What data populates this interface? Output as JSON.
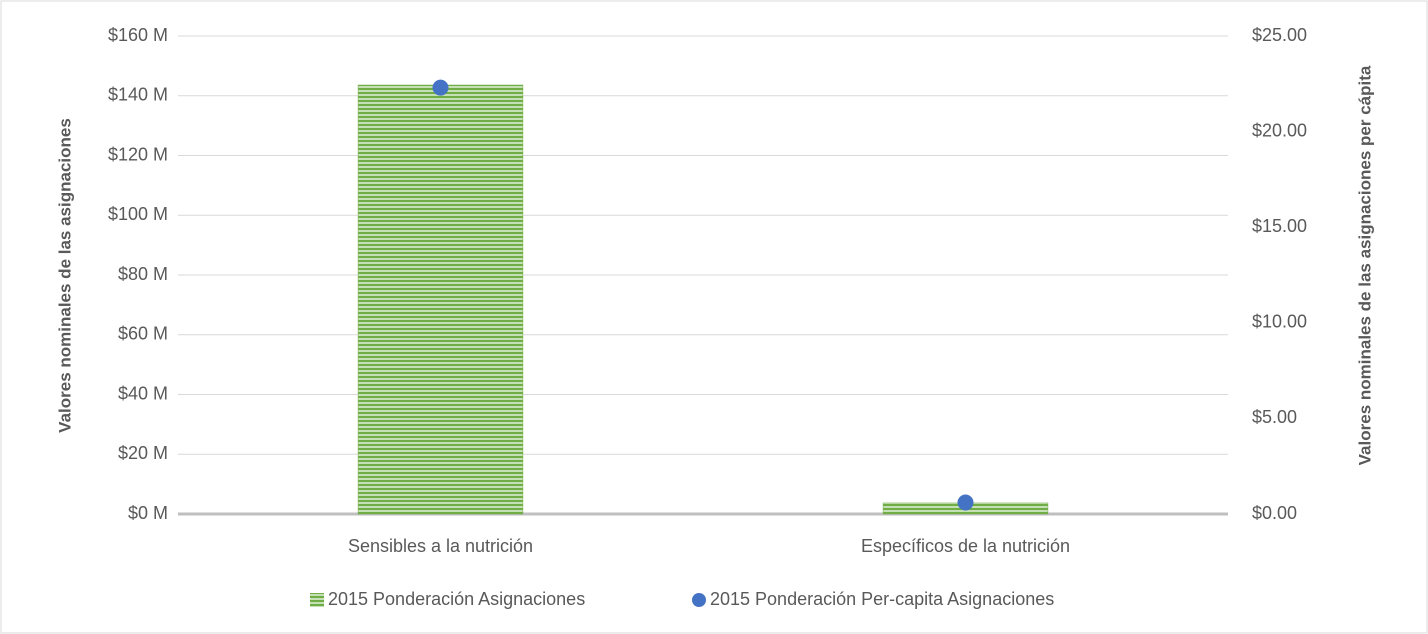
{
  "chart_data": {
    "type": "bar",
    "categories": [
      "Sensibles a la nutrición",
      "Específicos de la nutrición"
    ],
    "y_label": "Valores nominales de las asignaciones",
    "y2_label": "Valores  nominales de las asignaciones per cápita",
    "series": [
      {
        "name": "2015 Ponderación Asignaciones",
        "type": "bar",
        "color": "#70ad47",
        "values": [
          143.6,
          3.7
        ]
      },
      {
        "name": "2015 Ponderación Per-capita Asignaciones",
        "type": "scatter",
        "axis": "y2",
        "color": "#4472c4",
        "values": [
          22.3,
          0.6
        ]
      }
    ],
    "ylim": [
      0,
      160
    ],
    "yticks": [
      {
        "value": 0,
        "label": "$0 M"
      },
      {
        "value": 20,
        "label": "$20 M"
      },
      {
        "value": 40,
        "label": "$40 M"
      },
      {
        "value": 60,
        "label": "$60 M"
      },
      {
        "value": 80,
        "label": "$80 M"
      },
      {
        "value": 100,
        "label": "$100 M"
      },
      {
        "value": 120,
        "label": "$120 M"
      },
      {
        "value": 140,
        "label": "$140 M"
      },
      {
        "value": 160,
        "label": "$160 M"
      }
    ],
    "y2lim": [
      0,
      25
    ],
    "y2ticks": [
      {
        "value": 0,
        "label": "$0.00"
      },
      {
        "value": 5,
        "label": "$5.00"
      },
      {
        "value": 10,
        "label": "$10.00"
      },
      {
        "value": 15,
        "label": "$15.00"
      },
      {
        "value": 20,
        "label": "$20.00"
      },
      {
        "value": 25,
        "label": "$25.00"
      }
    ],
    "grid": true,
    "legend": "bottom"
  }
}
